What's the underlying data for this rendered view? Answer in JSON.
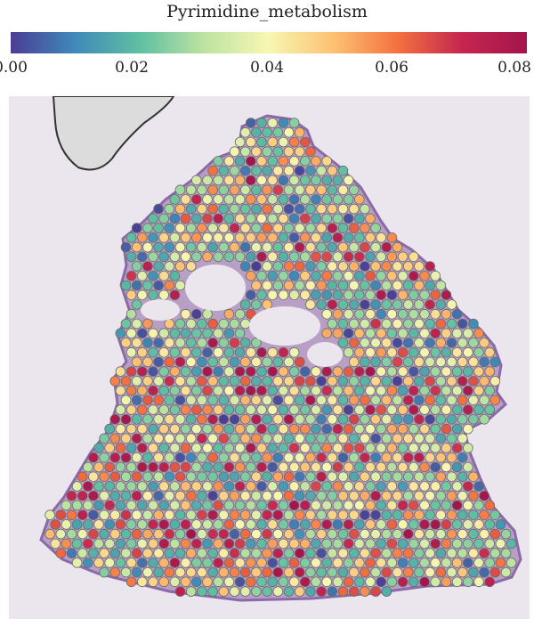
{
  "title": "Pyrimidine_metabolism",
  "colorbar": {
    "ticks": [
      "0.00",
      "0.02",
      "0.04",
      "0.06",
      "0.08"
    ],
    "tick_values": [
      0.0,
      0.02,
      0.04,
      0.06,
      0.08
    ],
    "range": [
      0.0,
      0.085
    ],
    "colormap": "Spectral_r",
    "stops": [
      "#4a3d94",
      "#3f8ab8",
      "#5fbfa2",
      "#bde3a1",
      "#f7f7b2",
      "#fdc173",
      "#f3713f",
      "#c5264f",
      "#a4154c"
    ]
  },
  "image": {
    "background": "#ebe6ee",
    "tissue_stain": "#8a6aa8",
    "spot_outline": "#6b6b6b"
  }
}
